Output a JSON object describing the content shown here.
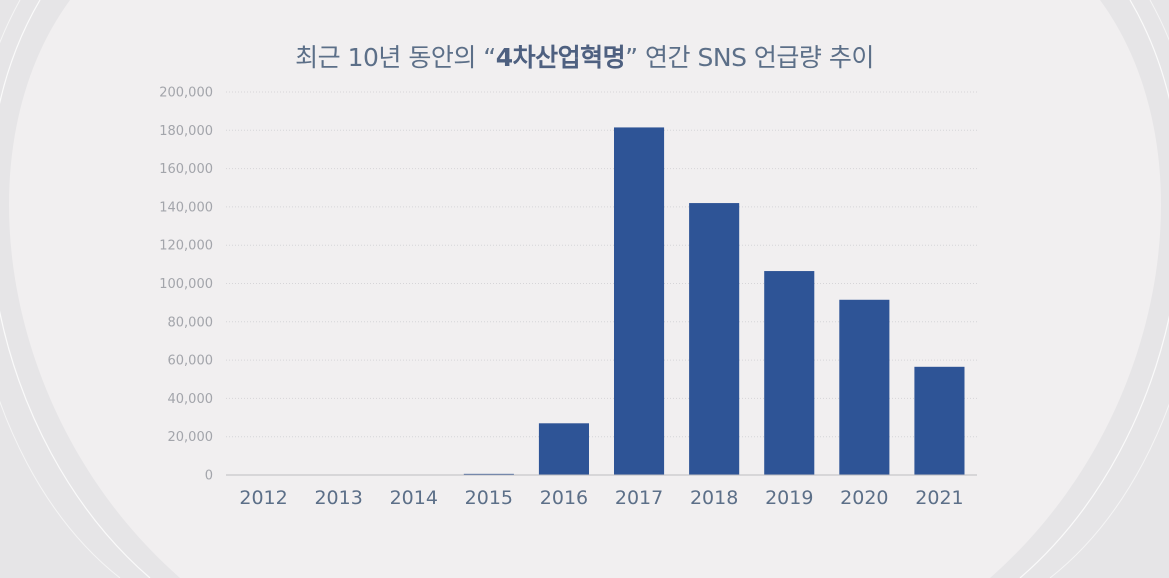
{
  "chart_data": {
    "type": "bar",
    "title_prefix": "최근 10년 동안의 “",
    "title_highlight": "4차산업혁명",
    "title_suffix": "” 연간 SNS 언급량 추이",
    "categories": [
      "2012",
      "2013",
      "2014",
      "2015",
      "2016",
      "2017",
      "2018",
      "2019",
      "2020",
      "2021"
    ],
    "values": [
      0,
      0,
      0,
      600,
      27000,
      181500,
      142000,
      106500,
      91500,
      56500
    ],
    "ylim": [
      0,
      200000
    ],
    "yticks": [
      0,
      20000,
      40000,
      60000,
      80000,
      100000,
      120000,
      140000,
      160000,
      180000,
      200000
    ],
    "ytick_labels": [
      "0",
      "20,000",
      "40,000",
      "60,000",
      "80,000",
      "100,000",
      "120,000",
      "140,000",
      "160,000",
      "180,000",
      "200,000"
    ],
    "xlabel": "",
    "ylabel": "",
    "grid": true,
    "legend": "none",
    "bar_color": "#2e5496"
  }
}
